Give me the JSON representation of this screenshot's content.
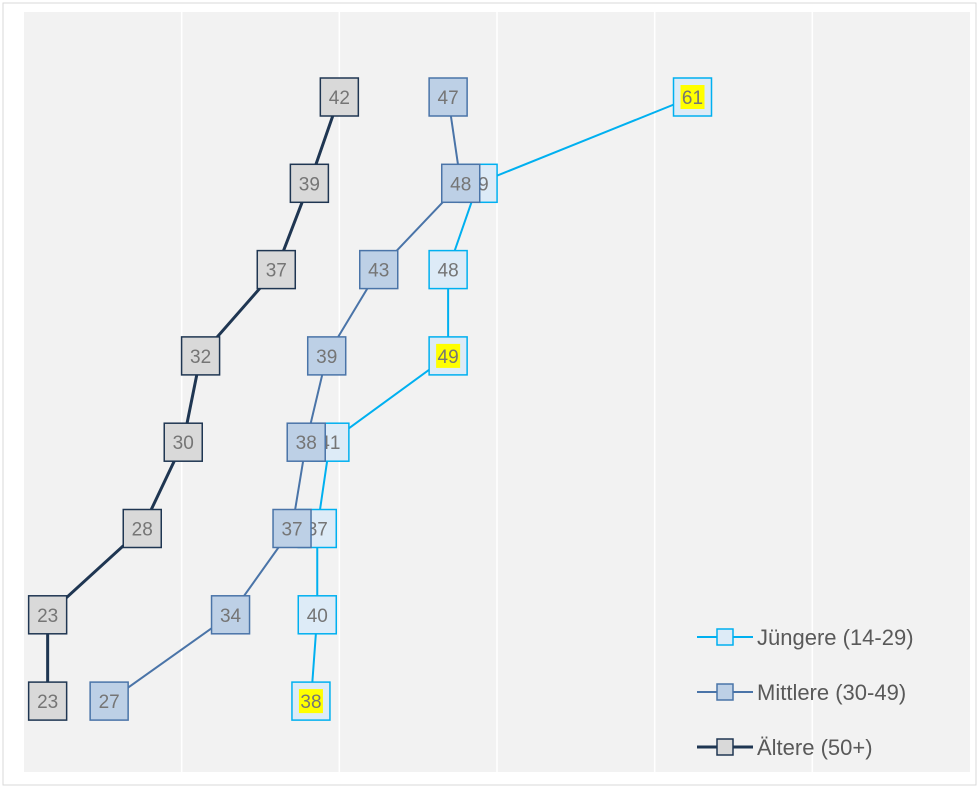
{
  "chart_data": {
    "type": "line",
    "title": "",
    "xlabel": "",
    "ylabel": "",
    "xlim": [
      0,
      60
    ],
    "y_slots": 8,
    "grid": "vertical",
    "legend_position": "bottom-right",
    "highlight_color": "#ffff00",
    "series": [
      {
        "name": "Jüngere (14-29)",
        "color": "#00b0f0",
        "marker_fill": "#ddebf7",
        "marker_border": "#00b0f0",
        "line_width": 2,
        "points": [
          {
            "x": 18.2,
            "y": 8,
            "label": "38",
            "highlight": true
          },
          {
            "x": 18.6,
            "y": 7,
            "label": "40"
          },
          {
            "x": 18.6,
            "y": 6,
            "label": "37"
          },
          {
            "x": 19.4,
            "y": 5,
            "label": "41"
          },
          {
            "x": 26.9,
            "y": 4,
            "label": "49",
            "highlight": true
          },
          {
            "x": 26.9,
            "y": 3,
            "label": "48"
          },
          {
            "x": 28.8,
            "y": 2,
            "label": "49"
          },
          {
            "x": 42.4,
            "y": 1,
            "label": "61",
            "highlight": true
          }
        ]
      },
      {
        "name": "Mittlere (30-49)",
        "color": "#4a74a8",
        "marker_fill": "#bdd0e6",
        "marker_border": "#4a74a8",
        "line_width": 2,
        "points": [
          {
            "x": 5.4,
            "y": 8,
            "label": "27"
          },
          {
            "x": 13.1,
            "y": 7,
            "label": "34"
          },
          {
            "x": 17.0,
            "y": 6,
            "label": "37"
          },
          {
            "x": 17.9,
            "y": 5,
            "label": "38"
          },
          {
            "x": 19.2,
            "y": 4,
            "label": "39"
          },
          {
            "x": 22.5,
            "y": 3,
            "label": "43"
          },
          {
            "x": 27.7,
            "y": 2,
            "label": "48"
          },
          {
            "x": 26.9,
            "y": 1,
            "label": "47"
          }
        ]
      },
      {
        "name": "Ältere (50+)",
        "color": "#1f3652",
        "marker_fill": "#d9d9d9",
        "marker_border": "#1f3652",
        "line_width": 3,
        "points": [
          {
            "x": 1.5,
            "y": 8,
            "label": "23"
          },
          {
            "x": 1.5,
            "y": 7,
            "label": "23"
          },
          {
            "x": 7.5,
            "y": 6,
            "label": "28"
          },
          {
            "x": 10.1,
            "y": 5,
            "label": "30"
          },
          {
            "x": 11.2,
            "y": 4,
            "label": "32"
          },
          {
            "x": 16.0,
            "y": 3,
            "label": "37"
          },
          {
            "x": 18.1,
            "y": 2,
            "label": "39"
          },
          {
            "x": 20.0,
            "y": 1,
            "label": "42"
          }
        ]
      }
    ]
  }
}
